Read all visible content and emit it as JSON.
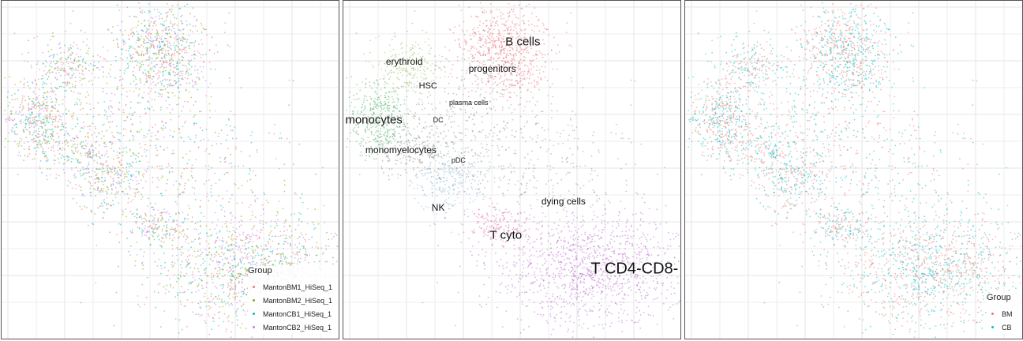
{
  "chart_data": [
    {
      "type": "scatter",
      "title": "",
      "xlabel": "",
      "ylabel": "",
      "grid": true,
      "legend": {
        "title": "Group",
        "position": "bottom-right"
      },
      "series": [
        {
          "name": "MantonBM1_HiSeq_1",
          "color": "#f8766d"
        },
        {
          "name": "MantonBM2_HiSeq_1",
          "color": "#7cae00"
        },
        {
          "name": "MantonCB1_HiSeq_1",
          "color": "#00bfc4"
        },
        {
          "name": "MantonCB2_HiSeq_1",
          "color": "#c77cff"
        }
      ]
    },
    {
      "type": "scatter",
      "title": "",
      "grid": true,
      "annotations": [
        {
          "text": "B cells",
          "x": 0.53,
          "y": 0.88,
          "size": "large"
        },
        {
          "text": "progenitors",
          "x": 0.44,
          "y": 0.8,
          "size": "medium"
        },
        {
          "text": "erythroid",
          "x": 0.18,
          "y": 0.82,
          "size": "medium"
        },
        {
          "text": "HSC",
          "x": 0.25,
          "y": 0.75,
          "size": "small"
        },
        {
          "text": "plasma cells",
          "x": 0.37,
          "y": 0.7,
          "size": "tiny"
        },
        {
          "text": "monocytes",
          "x": 0.09,
          "y": 0.65,
          "size": "large"
        },
        {
          "text": "DC",
          "x": 0.28,
          "y": 0.65,
          "size": "tiny"
        },
        {
          "text": "monomyelocytes",
          "x": 0.17,
          "y": 0.56,
          "size": "medium"
        },
        {
          "text": "pDC",
          "x": 0.34,
          "y": 0.53,
          "size": "tiny"
        },
        {
          "text": "dying cells",
          "x": 0.65,
          "y": 0.41,
          "size": "medium"
        },
        {
          "text": "NK",
          "x": 0.28,
          "y": 0.39,
          "size": "medium"
        },
        {
          "text": "T cyto",
          "x": 0.48,
          "y": 0.31,
          "size": "large"
        },
        {
          "text": "T CD4-CD8-",
          "x": 0.86,
          "y": 0.21,
          "size": "xlarge"
        }
      ]
    },
    {
      "type": "scatter",
      "title": "",
      "grid": true,
      "legend": {
        "title": "Group",
        "position": "bottom-right"
      },
      "series": [
        {
          "name": "BM",
          "color": "#f8766d"
        },
        {
          "name": "CB",
          "color": "#00bfc4"
        }
      ]
    }
  ]
}
